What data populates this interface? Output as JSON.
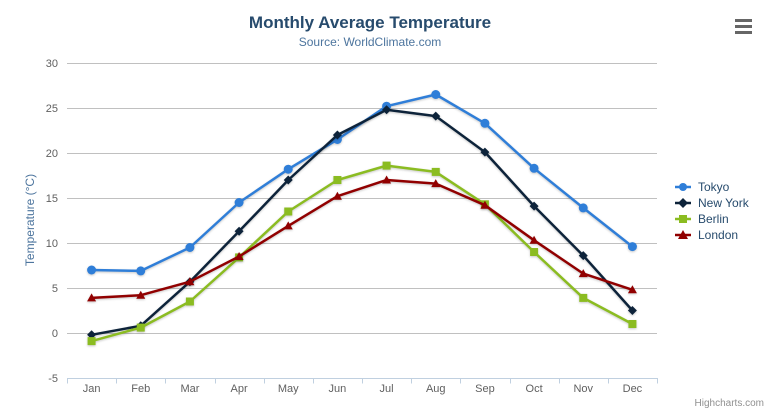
{
  "header": {
    "title": "Monthly Average Temperature",
    "subtitle": "Source: WorldClimate.com"
  },
  "toolbar": {
    "context_menu_icon": "hamburger"
  },
  "credits": "Highcharts.com",
  "styles": {
    "title_color": "#274b6d",
    "subtitle_color": "#4d759e",
    "axis_title_color": "#4d759e",
    "tick_label_color": "#606060",
    "grid_color": "#c0c0c0",
    "axis_line_color": "#c0d0e0",
    "legend_text_color": "#274b6d",
    "credits_color": "#909090",
    "menu_icon_color": "#666666",
    "background_color": "#ffffff"
  },
  "chart_data": {
    "type": "line",
    "title": "Monthly Average Temperature",
    "subtitle": "Source: WorldClimate.com",
    "xlabel": "",
    "ylabel": "Temperature (°C)",
    "categories": [
      "Jan",
      "Feb",
      "Mar",
      "Apr",
      "May",
      "Jun",
      "Jul",
      "Aug",
      "Sep",
      "Oct",
      "Nov",
      "Dec"
    ],
    "ylim": [
      -5,
      30
    ],
    "yticks": [
      -5,
      0,
      5,
      10,
      15,
      20,
      25,
      30
    ],
    "grid": true,
    "legend_position": "right",
    "series": [
      {
        "name": "Tokyo",
        "color": "#2f7ed8",
        "marker": "circle",
        "values": [
          7.0,
          6.9,
          9.5,
          14.5,
          18.2,
          21.5,
          25.2,
          26.5,
          23.3,
          18.3,
          13.9,
          9.6
        ]
      },
      {
        "name": "New York",
        "color": "#0d233a",
        "marker": "diamond",
        "values": [
          -0.2,
          0.8,
          5.7,
          11.3,
          17.0,
          22.0,
          24.8,
          24.1,
          20.1,
          14.1,
          8.6,
          2.5
        ]
      },
      {
        "name": "Berlin",
        "color": "#8bbc21",
        "marker": "square",
        "values": [
          -0.9,
          0.6,
          3.5,
          8.4,
          13.5,
          17.0,
          18.6,
          17.9,
          14.3,
          9.0,
          3.9,
          1.0
        ]
      },
      {
        "name": "London",
        "color": "#910000",
        "marker": "triangle",
        "values": [
          3.9,
          4.2,
          5.7,
          8.5,
          11.9,
          15.2,
          17.0,
          16.6,
          14.2,
          10.3,
          6.6,
          4.8
        ]
      }
    ]
  }
}
